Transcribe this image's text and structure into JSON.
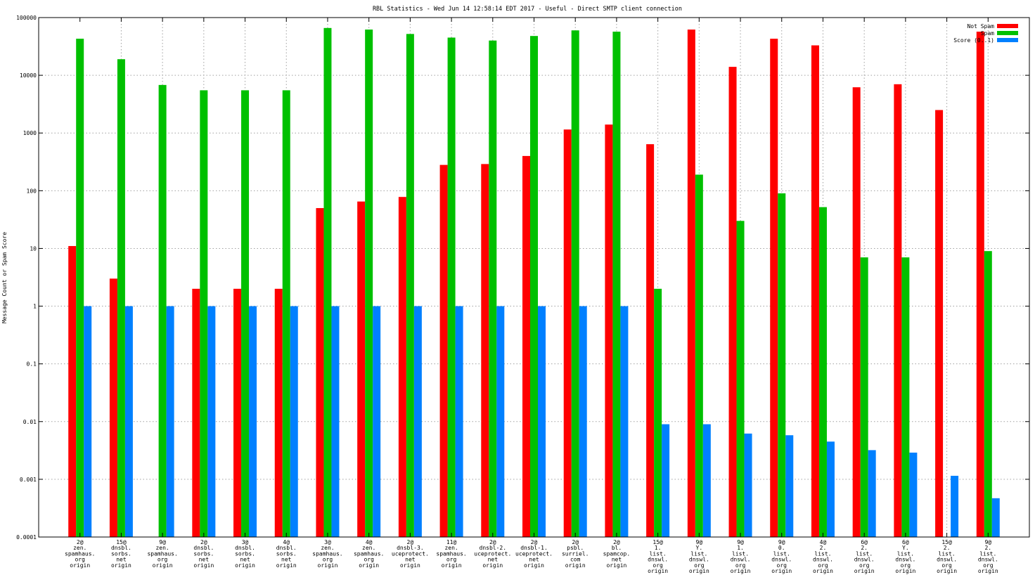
{
  "chart_data": {
    "type": "bar",
    "title": "RBL Statistics - Wed Jun 14 12:58:14 EDT 2017 - Useful - Direct SMTP client connection",
    "xlabel": "",
    "ylabel": "Message Count or Spam Score",
    "y_scale": "log",
    "ylim": [
      0.0001,
      100000
    ],
    "y_ticks": [
      {
        "value": 0.0001,
        "label": "0.0001"
      },
      {
        "value": 0.001,
        "label": "0.001"
      },
      {
        "value": 0.01,
        "label": "0.01"
      },
      {
        "value": 0.1,
        "label": "0.1"
      },
      {
        "value": 1,
        "label": "1"
      },
      {
        "value": 10,
        "label": "10"
      },
      {
        "value": 100,
        "label": "100"
      },
      {
        "value": 1000,
        "label": "1000"
      },
      {
        "value": 10000,
        "label": "10000"
      },
      {
        "value": 100000,
        "label": "100000"
      }
    ],
    "grid": true,
    "legend_position": "top-right",
    "categories": [
      [
        "2@",
        "zen.",
        "spamhaus.",
        "org",
        "origin"
      ],
      [
        "15@",
        "dnsbl.",
        "sorbs.",
        "net",
        "origin"
      ],
      [
        "9@",
        "zen.",
        "spamhaus.",
        "org",
        "origin"
      ],
      [
        "2@",
        "dnsbl.",
        "sorbs.",
        "net",
        "origin"
      ],
      [
        "3@",
        "dnsbl.",
        "sorbs.",
        "net",
        "origin"
      ],
      [
        "4@",
        "dnsbl.",
        "sorbs.",
        "net",
        "origin"
      ],
      [
        "3@",
        "zen.",
        "spamhaus.",
        "org",
        "origin"
      ],
      [
        "4@",
        "zen.",
        "spamhaus.",
        "org",
        "origin"
      ],
      [
        "2@",
        "dnsbl-3.",
        "uceprotect.",
        "net",
        "origin"
      ],
      [
        "11@",
        "zen.",
        "spamhaus.",
        "org",
        "origin"
      ],
      [
        "2@",
        "dnsbl-2.",
        "uceprotect.",
        "net",
        "origin"
      ],
      [
        "2@",
        "dnsbl-1.",
        "uceprotect.",
        "net",
        "origin"
      ],
      [
        "2@",
        "psbl.",
        "surriel.",
        "com",
        "origin"
      ],
      [
        "2@",
        "bl.",
        "spamcop.",
        "net",
        "origin"
      ],
      [
        "15@",
        "1.",
        "list.",
        "dnswl.",
        "org",
        "origin"
      ],
      [
        "9@",
        "Y.",
        "list.",
        "dnswl.",
        "org",
        "origin"
      ],
      [
        "9@",
        "1.",
        "list.",
        "dnswl.",
        "org",
        "origin"
      ],
      [
        "9@",
        "0.",
        "list.",
        "dnswl.",
        "org",
        "origin"
      ],
      [
        "4@",
        "2.",
        "list.",
        "dnswl.",
        "org",
        "origin"
      ],
      [
        "6@",
        "2.",
        "list.",
        "dnswl.",
        "org",
        "origin"
      ],
      [
        "6@",
        "Y.",
        "list.",
        "dnswl.",
        "org",
        "origin"
      ],
      [
        "15@",
        "2.",
        "list.",
        "dnswl.",
        "org",
        "origin"
      ],
      [
        "9@",
        "2.",
        "list.",
        "dnswl.",
        "org",
        "origin"
      ]
    ],
    "series": [
      {
        "name": "Not Spam",
        "color": "#ff0000",
        "values": [
          11,
          3,
          null,
          2,
          2,
          2,
          50,
          65,
          78,
          280,
          290,
          400,
          1150,
          1400,
          640,
          62000,
          14000,
          43000,
          33000,
          6200,
          7000,
          2500,
          57000
        ]
      },
      {
        "name": "Spam",
        "color": "#00c000",
        "values": [
          43000,
          19000,
          6800,
          5500,
          5500,
          5500,
          66000,
          62000,
          52000,
          45000,
          40000,
          48000,
          60000,
          57000,
          2,
          190,
          30,
          90,
          52,
          7,
          7,
          null,
          9
        ]
      },
      {
        "name": "Score (0..1)",
        "color": "#0080ff",
        "values": [
          1,
          1,
          1,
          1,
          1,
          1,
          1,
          1,
          1,
          1,
          1,
          1,
          1,
          1,
          0.009,
          0.009,
          0.0062,
          0.0058,
          0.0045,
          0.0032,
          0.0029,
          0.00115,
          0.00047
        ]
      }
    ]
  }
}
